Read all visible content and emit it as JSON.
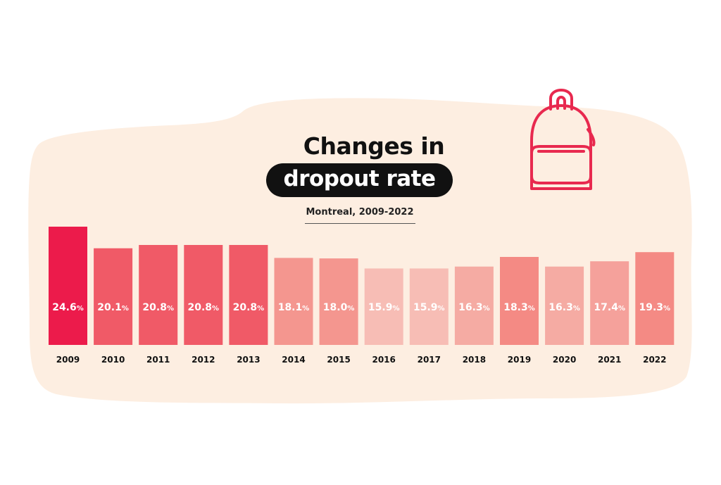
{
  "title_line1": "Changes in",
  "title_line2": "dropout rate",
  "subtitle": "Montreal, 2009-2022",
  "icon": "backpack-icon",
  "colors": {
    "background_blob": "#fdeee1",
    "title_pill": "#111111",
    "icon": "#e8294f"
  },
  "chart_data": {
    "type": "bar",
    "title": "Changes in dropout rate",
    "subtitle": "Montreal, 2009-2022",
    "categories": [
      "2009",
      "2010",
      "2011",
      "2012",
      "2013",
      "2014",
      "2015",
      "2016",
      "2017",
      "2018",
      "2019",
      "2020",
      "2021",
      "2022"
    ],
    "values": [
      24.6,
      20.1,
      20.8,
      20.8,
      20.8,
      18.1,
      18.0,
      15.9,
      15.9,
      16.3,
      18.3,
      16.3,
      17.4,
      19.3
    ],
    "value_suffix": "%",
    "bar_colors": [
      "#ec1b4b",
      "#f05a67",
      "#f05a67",
      "#f05a67",
      "#f05a67",
      "#f4968f",
      "#f4968f",
      "#f7bdb5",
      "#f7bdb5",
      "#f5aba3",
      "#f48a84",
      "#f5aba3",
      "#f5a19b",
      "#f48a84"
    ],
    "xlabel": "",
    "ylabel": "",
    "grid": false,
    "legend": "none"
  }
}
